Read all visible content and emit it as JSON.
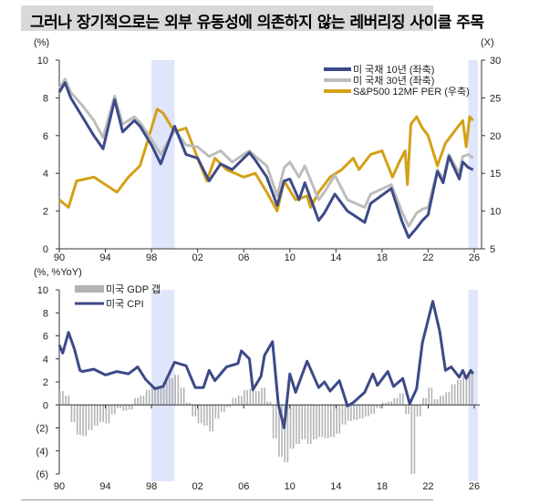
{
  "title": "그러나 장기적으로는 외부 유동성에 의존하지 않는 레버리징 사이클 주목",
  "chart_data": [
    {
      "type": "line",
      "left_unit": "(%)",
      "right_unit": "(X)",
      "xlim": [
        1990,
        2026
      ],
      "ylim_left": [
        0,
        10
      ],
      "ylim_right": [
        5,
        30
      ],
      "x_tick_labels": [
        "90",
        "94",
        "98",
        "02",
        "06",
        "10",
        "14",
        "18",
        "22",
        "26"
      ],
      "x_tick_years": [
        1990,
        1994,
        1998,
        2002,
        2006,
        2010,
        2014,
        2018,
        2022,
        2026
      ],
      "left_tick_labels": [
        "0",
        "2",
        "4",
        "6",
        "8",
        "10"
      ],
      "right_tick_labels": [
        "5",
        "10",
        "15",
        "20",
        "25",
        "30"
      ],
      "shaded_periods": [
        [
          1998,
          2000
        ],
        [
          2025.5,
          2026.5
        ]
      ],
      "shade_color": "#dfe5fb",
      "legend_position": "top-right",
      "series": [
        {
          "name": "미 국채 10년 (좌축)",
          "axis": "left",
          "color": "#3d4a87",
          "x": [
            1990,
            1990.5,
            1991,
            1992,
            1993,
            1993.8,
            1994.8,
            1995.5,
            1996.5,
            1997,
            1998,
            1998.8,
            2000,
            2001,
            2002,
            2003,
            2004,
            2005,
            2006.5,
            2007,
            2008,
            2008.9,
            2009.5,
            2010,
            2010.8,
            2011.3,
            2012.5,
            2013,
            2013.9,
            2015,
            2016.5,
            2017,
            2018.8,
            2019.7,
            2020.3,
            2021,
            2021.5,
            2022,
            2022.8,
            2023.3,
            2023.8,
            2024.7,
            2025,
            2025.5,
            2025.9
          ],
          "y": [
            8.3,
            8.8,
            8.0,
            7.0,
            6.0,
            5.3,
            7.9,
            6.2,
            6.8,
            6.5,
            5.5,
            4.5,
            6.5,
            5.0,
            4.8,
            3.6,
            4.5,
            4.2,
            5.1,
            4.7,
            3.8,
            2.3,
            3.6,
            3.7,
            2.6,
            3.5,
            1.5,
            1.9,
            2.9,
            2.0,
            1.4,
            2.4,
            3.2,
            1.5,
            0.6,
            1.1,
            1.5,
            1.8,
            4.1,
            3.5,
            4.9,
            3.7,
            4.6,
            4.3,
            4.2
          ]
        },
        {
          "name": "미 국채 30년 (좌축)",
          "axis": "left",
          "color": "#bdbdbd",
          "x": [
            1990,
            1990.5,
            1991,
            1992,
            1993,
            1993.8,
            1994.8,
            1995.5,
            1996.5,
            1997,
            1998,
            1998.8,
            2000,
            2001,
            2002,
            2003,
            2004,
            2005,
            2006.5,
            2007,
            2008,
            2008.9,
            2009.5,
            2010,
            2010.8,
            2011.3,
            2012.5,
            2013,
            2013.9,
            2015,
            2016.5,
            2017,
            2018.8,
            2019.7,
            2020.3,
            2021,
            2021.5,
            2022,
            2022.8,
            2023.3,
            2023.8,
            2024.7,
            2025,
            2025.5,
            2025.9
          ],
          "y": [
            8.5,
            9.0,
            8.3,
            7.6,
            6.8,
            5.9,
            8.1,
            6.6,
            7.0,
            6.7,
            5.8,
            5.0,
            6.3,
            5.5,
            5.4,
            4.9,
            5.2,
            4.6,
            5.2,
            4.9,
            4.4,
            2.8,
            4.3,
            4.6,
            3.8,
            4.4,
            2.6,
            3.0,
            3.9,
            2.6,
            2.2,
            2.9,
            3.4,
            2.0,
            1.2,
            1.9,
            2.1,
            2.2,
            4.2,
            3.7,
            5.0,
            4.0,
            4.9,
            5.0,
            4.8
          ]
        },
        {
          "name": "S&P500 12MF PER (우축)",
          "axis": "right",
          "color": "#d4a017",
          "x": [
            1990,
            1990.8,
            1991.5,
            1993,
            1994.5,
            1995,
            1996,
            1997,
            1998,
            1998.5,
            1999,
            2000,
            2001,
            2002,
            2002.8,
            2003.5,
            2004.5,
            2006,
            2007,
            2008,
            2008.9,
            2009.5,
            2010.5,
            2011.5,
            2011.8,
            2012.5,
            2013.5,
            2014.5,
            2015.5,
            2016,
            2017,
            2018,
            2018.9,
            2019.5,
            2020,
            2020.2,
            2020.5,
            2021,
            2021.5,
            2022,
            2022.8,
            2023.5,
            2024,
            2024.5,
            2025,
            2025.3,
            2025.6,
            2025.9
          ],
          "y": [
            11.5,
            10.5,
            14,
            14.5,
            13,
            12.5,
            14.5,
            16,
            21,
            23.5,
            23,
            20.5,
            21,
            17,
            14,
            17,
            15.5,
            14.5,
            15,
            12.5,
            10,
            14,
            11.5,
            12,
            10.5,
            12.5,
            14.5,
            15.5,
            17,
            15.5,
            17.5,
            18,
            14.5,
            16.5,
            18,
            13.5,
            21.5,
            22.5,
            21,
            20,
            16,
            19,
            20,
            21,
            22,
            18.5,
            22.5,
            22
          ]
        }
      ]
    },
    {
      "type": "bar+line",
      "unit": "(%, %YoY)",
      "xlim": [
        1990,
        2026
      ],
      "ylim": [
        -6,
        10
      ],
      "x_tick_labels": [
        "90",
        "94",
        "98",
        "02",
        "06",
        "10",
        "14",
        "18",
        "22",
        "26"
      ],
      "y_tick_labels": [
        "(6)",
        "(4)",
        "(2)",
        "0",
        "2",
        "4",
        "6",
        "8",
        "10"
      ],
      "y_tick_values": [
        -6,
        -4,
        -2,
        0,
        2,
        4,
        6,
        8,
        10
      ],
      "shaded_periods": [
        [
          1998,
          2000
        ],
        [
          2025.5,
          2026.5
        ]
      ],
      "legend_position": "top-left",
      "bars": {
        "name": "미국 GDP 갭",
        "color": "#b3b3b3",
        "x_start": 1990,
        "x_step": 0.5,
        "values": [
          1.2,
          0.8,
          -1.5,
          -2.6,
          -2.7,
          -2.2,
          -1.8,
          -1.5,
          -1.6,
          -0.8,
          -0.3,
          -0.5,
          -0.4,
          0.6,
          0.8,
          1.3,
          1.6,
          1.7,
          2.0,
          2.3,
          2.6,
          1.5,
          0.2,
          -1.0,
          -1.6,
          -1.8,
          -2.3,
          -1.2,
          -0.6,
          -0.2,
          0.6,
          0.8,
          1.3,
          1.4,
          1.2,
          1.5,
          0.3,
          -2.9,
          -4.5,
          -5.0,
          -3.8,
          -3.4,
          -3.0,
          -3.4,
          -3.0,
          -2.8,
          -2.9,
          -2.8,
          -2.5,
          -1.7,
          -1.4,
          -1.3,
          -1.2,
          -1.0,
          -0.8,
          -0.3,
          0.2,
          0.3,
          0.6,
          1.0,
          -0.8,
          -6.0,
          -1.0,
          0.6,
          1.5,
          0.5,
          0.8,
          1.1,
          1.8,
          2.2,
          2.5,
          2.7
        ]
      },
      "line": {
        "name": "미국 CPI",
        "color": "#3d4a87",
        "x": [
          1990,
          1990.3,
          1990.8,
          1991.3,
          1991.8,
          1992,
          1993,
          1994,
          1995,
          1996,
          1996.8,
          1997.5,
          1998.3,
          1999,
          2000,
          2001,
          2001.8,
          2002.5,
          2003,
          2003.5,
          2004.5,
          2005.5,
          2005.8,
          2006.5,
          2006.8,
          2007.5,
          2007.8,
          2008.5,
          2009,
          2009.5,
          2010,
          2010.5,
          2011.5,
          2012.5,
          2013,
          2013.5,
          2014.3,
          2015,
          2015.5,
          2016.5,
          2017.2,
          2017.6,
          2018.5,
          2019,
          2019.8,
          2020.4,
          2021,
          2021.5,
          2022.4,
          2023,
          2023.5,
          2024,
          2024.7,
          2025,
          2025.3,
          2025.7,
          2025.9
        ],
        "y": [
          5.2,
          4.5,
          6.3,
          4.9,
          3.0,
          2.9,
          3.1,
          2.6,
          2.9,
          2.7,
          3.3,
          2.2,
          1.4,
          1.6,
          3.7,
          3.4,
          1.5,
          1.5,
          3.0,
          2.1,
          3.3,
          3.6,
          4.7,
          4.0,
          1.3,
          2.5,
          4.3,
          5.5,
          0.1,
          -2.0,
          2.7,
          1.1,
          3.8,
          1.5,
          2.0,
          1.2,
          2.1,
          -0.1,
          0.2,
          1.1,
          2.7,
          1.7,
          2.9,
          1.6,
          2.3,
          0.1,
          1.4,
          5.4,
          9.0,
          6.4,
          3.0,
          3.3,
          2.4,
          3.0,
          2.3,
          3.0,
          2.7
        ]
      }
    }
  ]
}
